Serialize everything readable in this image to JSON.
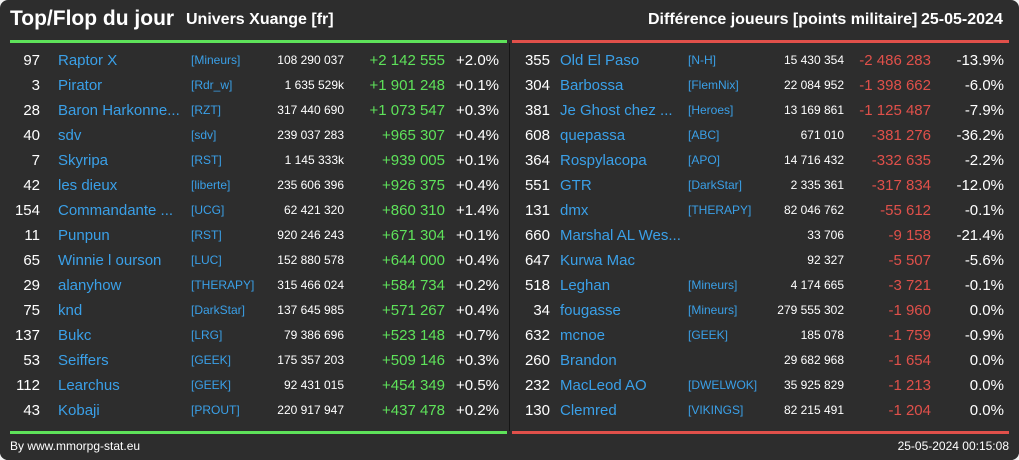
{
  "header": {
    "title": "Top/Flop du jour",
    "universe": "Univers Xuange [fr]",
    "metric": "Différence joueurs [points militaire]",
    "date": "25-05-2024"
  },
  "colors": {
    "gain": "#5ee25a",
    "loss": "#e0504a",
    "link": "#3aa0e8",
    "background": "#2d2d2d"
  },
  "top": [
    {
      "rank": "97",
      "name": "Raptor X",
      "guild": "[Mineurs]",
      "points": "108 290 037",
      "diff": "+2 142 555",
      "pct": "+2.0%"
    },
    {
      "rank": "3",
      "name": "Pirator",
      "guild": "[Rdr_w]",
      "points": "1 635 529k",
      "diff": "+1 901 248",
      "pct": "+0.1%"
    },
    {
      "rank": "28",
      "name": "Baron Harkonne...",
      "guild": "[RZT]",
      "points": "317 440 690",
      "diff": "+1 073 547",
      "pct": "+0.3%"
    },
    {
      "rank": "40",
      "name": "sdv",
      "guild": "[sdv]",
      "points": "239 037 283",
      "diff": "+965 307",
      "pct": "+0.4%"
    },
    {
      "rank": "7",
      "name": "Skyripa",
      "guild": "[RST]",
      "points": "1 145 333k",
      "diff": "+939 005",
      "pct": "+0.1%"
    },
    {
      "rank": "42",
      "name": "les dieux",
      "guild": "[liberte]",
      "points": "235 606 396",
      "diff": "+926 375",
      "pct": "+0.4%"
    },
    {
      "rank": "154",
      "name": "Commandante ...",
      "guild": "[UCG]",
      "points": "62 421 320",
      "diff": "+860 310",
      "pct": "+1.4%"
    },
    {
      "rank": "11",
      "name": "Punpun",
      "guild": "[RST]",
      "points": "920 246 243",
      "diff": "+671 304",
      "pct": "+0.1%"
    },
    {
      "rank": "65",
      "name": "Winnie l ourson",
      "guild": "[LUC]",
      "points": "152 880 578",
      "diff": "+644 000",
      "pct": "+0.4%"
    },
    {
      "rank": "29",
      "name": "alanyhow",
      "guild": "[THERAPY]",
      "points": "315 466 024",
      "diff": "+584 734",
      "pct": "+0.2%"
    },
    {
      "rank": "75",
      "name": "knd",
      "guild": "[DarkStar]",
      "points": "137 645 985",
      "diff": "+571 267",
      "pct": "+0.4%"
    },
    {
      "rank": "137",
      "name": "Bukc",
      "guild": "[LRG]",
      "points": "79 386 696",
      "diff": "+523 148",
      "pct": "+0.7%"
    },
    {
      "rank": "53",
      "name": "Seiffers",
      "guild": "[GEEK]",
      "points": "175 357 203",
      "diff": "+509 146",
      "pct": "+0.3%"
    },
    {
      "rank": "112",
      "name": "Learchus",
      "guild": "[GEEK]",
      "points": "92 431 015",
      "diff": "+454 349",
      "pct": "+0.5%"
    },
    {
      "rank": "43",
      "name": "Kobaji",
      "guild": "[PROUT]",
      "points": "220 917 947",
      "diff": "+437 478",
      "pct": "+0.2%"
    }
  ],
  "flop": [
    {
      "rank": "355",
      "name": "Old El Paso",
      "guild": "[N-H]",
      "points": "15 430 354",
      "diff": "-2 486 283",
      "pct": "-13.9%"
    },
    {
      "rank": "304",
      "name": "Barbossa",
      "guild": "[FlemNix]",
      "points": "22 084 952",
      "diff": "-1 398 662",
      "pct": "-6.0%"
    },
    {
      "rank": "381",
      "name": "Je Ghost chez ...",
      "guild": "[Heroes]",
      "points": "13 169 861",
      "diff": "-1 125 487",
      "pct": "-7.9%"
    },
    {
      "rank": "608",
      "name": "quepassa",
      "guild": "[ABC]",
      "points": "671 010",
      "diff": "-381 276",
      "pct": "-36.2%"
    },
    {
      "rank": "364",
      "name": "Rospylacopa",
      "guild": "[APO]",
      "points": "14 716 432",
      "diff": "-332 635",
      "pct": "-2.2%"
    },
    {
      "rank": "551",
      "name": "GTR",
      "guild": "[DarkStar]",
      "points": "2 335 361",
      "diff": "-317 834",
      "pct": "-12.0%"
    },
    {
      "rank": "131",
      "name": "dmx",
      "guild": "[THERAPY]",
      "points": "82 046 762",
      "diff": "-55 612",
      "pct": "-0.1%"
    },
    {
      "rank": "660",
      "name": "Marshal AL Wes...",
      "guild": "",
      "points": "33 706",
      "diff": "-9 158",
      "pct": "-21.4%"
    },
    {
      "rank": "647",
      "name": "Kurwa Mac",
      "guild": "",
      "points": "92 327",
      "diff": "-5 507",
      "pct": "-5.6%"
    },
    {
      "rank": "518",
      "name": "Leghan",
      "guild": "[Mineurs]",
      "points": "4 174 665",
      "diff": "-3 721",
      "pct": "-0.1%"
    },
    {
      "rank": "34",
      "name": "fougasse",
      "guild": "[Mineurs]",
      "points": "279 555 302",
      "diff": "-1 960",
      "pct": "0.0%"
    },
    {
      "rank": "632",
      "name": "mcnoe",
      "guild": "[GEEK]",
      "points": "185 078",
      "diff": "-1 759",
      "pct": "-0.9%"
    },
    {
      "rank": "260",
      "name": "Brandon",
      "guild": "",
      "points": "29 682 968",
      "diff": "-1 654",
      "pct": "0.0%"
    },
    {
      "rank": "232",
      "name": "MacLeod AO",
      "guild": "[DWELWOK]",
      "points": "35 925 829",
      "diff": "-1 213",
      "pct": "0.0%"
    },
    {
      "rank": "130",
      "name": "Clemred",
      "guild": "[VIKINGS]",
      "points": "82 215 491",
      "diff": "-1 204",
      "pct": "0.0%"
    }
  ],
  "footer": {
    "credit": "By www.mmorpg-stat.eu",
    "timestamp": "25-05-2024 00:15:08"
  }
}
